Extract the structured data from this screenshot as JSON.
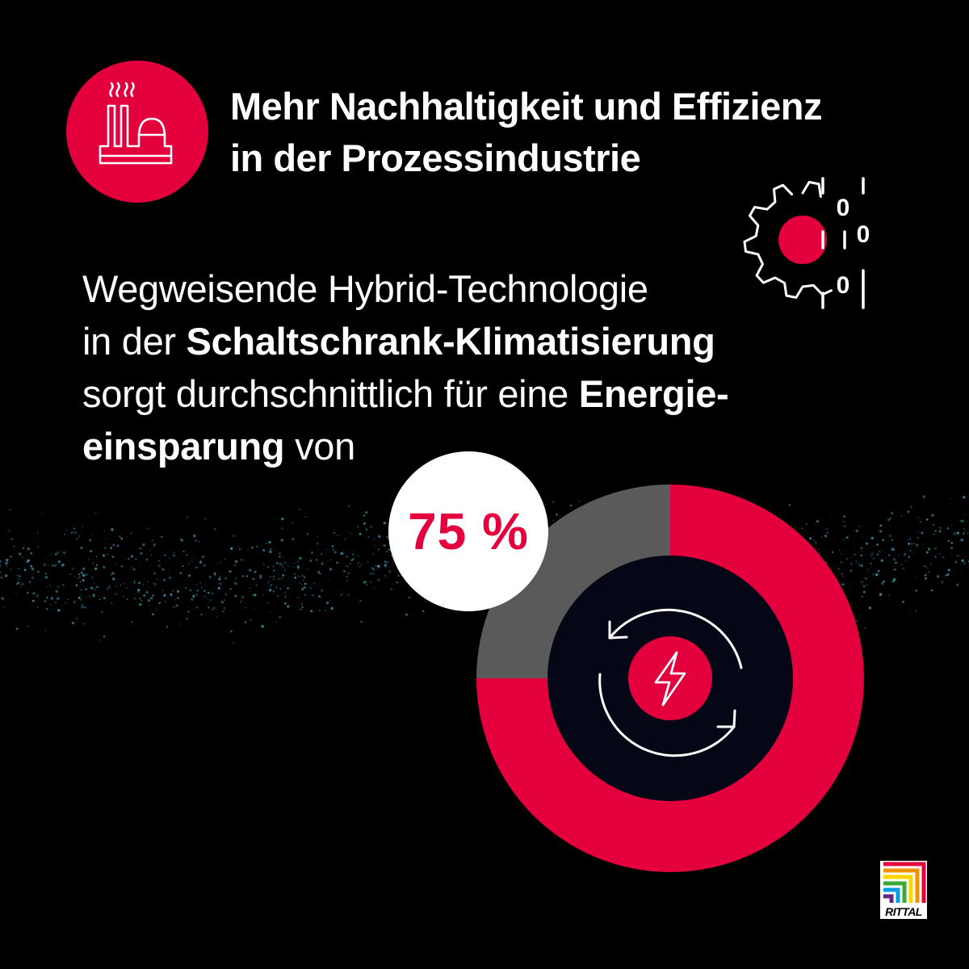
{
  "headline": {
    "line1": "Mehr Nachhaltigkeit und Effizienz",
    "line2": "in der Prozessindustrie"
  },
  "body": {
    "line1": "Wegweisende Hybrid-Technologie",
    "line2_prefix": "in der ",
    "line2_bold": "Schaltschrank-Klimatisierung",
    "line3_regular": "sorgt durchschnittlich für eine ",
    "line3_bold": "Energie-",
    "line4_bold": "einsparung",
    "line4_suffix": " von"
  },
  "stat": {
    "label": "75 %",
    "fraction": 0.75
  },
  "binary": {
    "digits": [
      "0",
      "0",
      "0"
    ]
  },
  "logo": {
    "text": "RITTAL"
  },
  "colors": {
    "accent": "#e4003d",
    "remainder": "#5a5a5a",
    "background": "#000000",
    "inner": "#060716"
  },
  "icons": {
    "badge": "factory-icon",
    "gear": "gear-data-icon",
    "center": "energy-cycle-icon"
  }
}
